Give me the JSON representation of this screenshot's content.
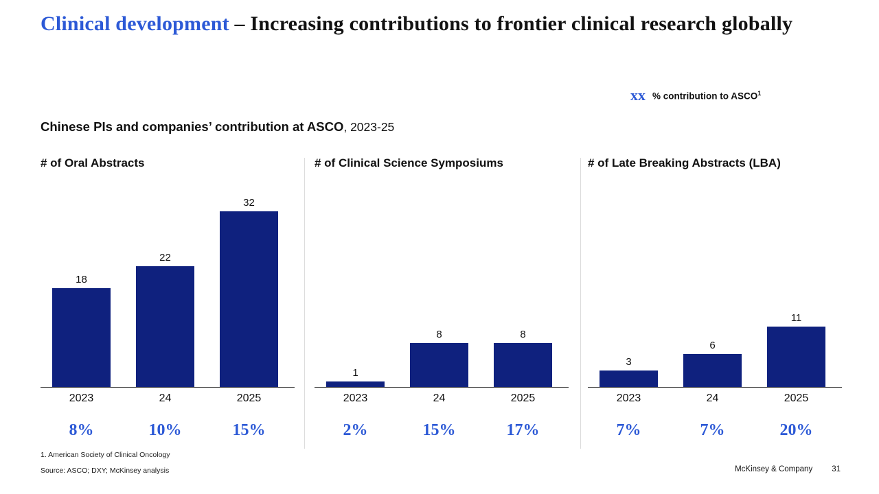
{
  "page": {
    "title": {
      "highlight": "Clinical development",
      "rest": " – Increasing contributions to frontier clinical research globally"
    },
    "legend": {
      "marker": "xx",
      "label": "% contribution to ASCO",
      "footnote_ref": "1"
    },
    "subtitle": {
      "bold": "Chinese PIs and companies’ contribution at ASCO",
      "rest": ", 2023-25"
    },
    "footnotes": {
      "note1": "1.    American Society of Clinical Oncology",
      "source": "Source: ASCO; DXY; McKinsey analysis"
    },
    "footer": {
      "brand": "McKinsey & Company",
      "page_number": "31"
    }
  },
  "colors": {
    "bar_navy": "#0F217E",
    "accent_blue": "#2C59D6",
    "divider_gray": "#DCDCDC",
    "axis_line": "#3C3C3C"
  },
  "chart_data": [
    {
      "type": "bar",
      "title": "# of Oral Abstracts",
      "categories": [
        "2023",
        "24",
        "2025"
      ],
      "values": [
        18,
        22,
        32
      ],
      "percent_labels": [
        "8%",
        "10%",
        "15%"
      ],
      "ylim": [
        0,
        35
      ],
      "grid": false,
      "bar_color": "#0F217E"
    },
    {
      "type": "bar",
      "title": "# of Clinical Science Symposiums",
      "categories": [
        "2023",
        "24",
        "2025"
      ],
      "values": [
        1,
        8,
        8
      ],
      "percent_labels": [
        "2%",
        "15%",
        "17%"
      ],
      "ylim": [
        0,
        35
      ],
      "grid": false,
      "bar_color": "#0F217E"
    },
    {
      "type": "bar",
      "title": "# of Late Breaking Abstracts (LBA)",
      "categories": [
        "2023",
        "24",
        "2025"
      ],
      "values": [
        3,
        6,
        11
      ],
      "percent_labels": [
        "7%",
        "7%",
        "20%"
      ],
      "ylim": [
        0,
        35
      ],
      "grid": false,
      "bar_color": "#0F217E"
    }
  ]
}
